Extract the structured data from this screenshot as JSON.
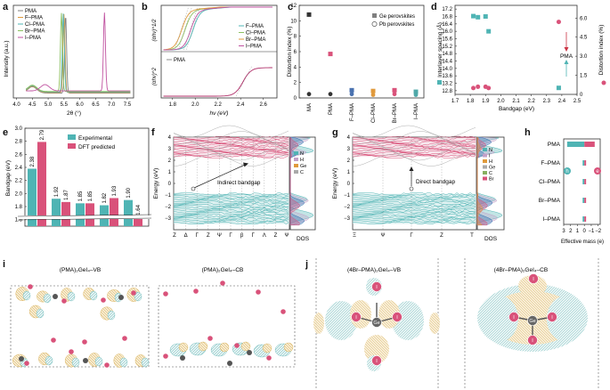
{
  "colors": {
    "teal": "#4fb4b4",
    "pink": "#d9527a",
    "gray": "#808080",
    "orange": "#e09a3c",
    "green": "#8cc060",
    "purple": "#c052a0",
    "dark": "#222222",
    "red": "#cc3344"
  },
  "panel_letters": [
    "a",
    "b",
    "c",
    "d",
    "e",
    "f",
    "g",
    "h",
    "i",
    "j"
  ],
  "panels": {
    "a": {
      "ylabel": "Intensity (a.u.)",
      "xlabel": "2θ (°)",
      "legend": [
        "PMA",
        "F–PMA",
        "Cl–PMA",
        "Br–PMA",
        "I–PMA"
      ],
      "xticks": [
        "4.0",
        "4.5",
        "5.0",
        "5.5",
        "6.0",
        "6.5",
        "7.0",
        "7.5"
      ]
    },
    "b": {
      "ylabel_top": "(αhν)^1/2",
      "ylabel_bottom": "(αhν)^2",
      "xlabel": "hν (eV)",
      "legend": [
        "F–PMA",
        "Cl–PMA",
        "Br–PMA",
        "I–PMA"
      ],
      "bottom_label": "PMA",
      "xticks": [
        "1.8",
        "2.0",
        "2.2",
        "2.4",
        "2.6"
      ]
    },
    "c": {
      "ylabel": "Distortion index (%)",
      "legend": [
        "Ge perovskites",
        "Pb perovskites"
      ],
      "categories": [
        "MA",
        "PMA",
        "F–PMA",
        "Cl–PMA",
        "Br–PMA",
        "I–PMA"
      ],
      "yticks": [
        "0",
        "2",
        "4",
        "6",
        "8",
        "10",
        "12"
      ]
    },
    "d": {
      "ylabel_left": "Interlayer spacing (Å)",
      "ylabel_right": "Distortion index (%)",
      "xlabel": "Bandgap (eV)",
      "annotation": "PMA",
      "yticks_left": [
        "12.8",
        "13.2",
        "13.6",
        "14.0",
        "14.4",
        "14.8",
        "15.2",
        "15.6",
        "16.0",
        "16.4",
        "16.8",
        "17.2"
      ],
      "yticks_right": [
        "0",
        "1.5",
        "3.0",
        "4.5",
        "6.0"
      ],
      "xticks": [
        "1.7",
        "1.8",
        "1.9",
        "2.0",
        "2.1",
        "2.2",
        "2.3",
        "2.4",
        "2.5"
      ]
    },
    "e": {
      "ylabel": "Bandgap (eV)",
      "legend": [
        "Experimental",
        "DFT predicted"
      ],
      "yticks": [
        "1.6",
        "1.8",
        "2.0",
        "2.2",
        "2.4",
        "2.6",
        "2.8",
        "3.0"
      ]
    },
    "f": {
      "ylabel": "Energy (eV)",
      "annotation": "Indirect bandgap",
      "kpoints": [
        "Z",
        "Δ",
        "Γ",
        "Z",
        "Ψ",
        "Γ",
        "β",
        "Γ",
        "Λ",
        "Z",
        "Ψ"
      ],
      "dos_label": "DOS",
      "dos_legend": [
        "N",
        "H",
        "Ge",
        "C"
      ],
      "yticks": [
        "4",
        "3",
        "2",
        "1",
        "0",
        "−1",
        "−2",
        "−3"
      ]
    },
    "g": {
      "ylabel": "Energy (eV)",
      "annotation": "Direct bandgap",
      "kpoints": [
        "Ξ",
        "Ψ",
        "Γ",
        "Z",
        "T"
      ],
      "dos_label": "DOS",
      "dos_legend": [
        "N",
        "I",
        "H",
        "Ge",
        "C",
        "Br"
      ],
      "yticks": [
        "4",
        "3",
        "2",
        "1",
        "0",
        "−1",
        "−2",
        "−3"
      ]
    },
    "h": {
      "categories": [
        "PMA",
        "F–PMA",
        "Cl–PMA",
        "Br–PMA",
        "I–PMA"
      ],
      "xlabel": "Effective mass (e)",
      "markers": [
        "h",
        "e"
      ],
      "xticks": [
        "3",
        "2",
        "1",
        "0",
        "−1",
        "−2"
      ]
    },
    "i": {
      "labels": [
        "(PMA)₂GeI₄–VB",
        "(PMA)₂GeI₄–CB"
      ]
    },
    "j": {
      "labels": [
        "(4Br–PMA)₂GeI₄–VB",
        "(4Br–PMA)₂GeI₄–CB"
      ],
      "atom_labels": [
        "I",
        "Ge"
      ]
    }
  },
  "chart_data": [
    {
      "panel": "e",
      "type": "bar",
      "title": "",
      "categories": [
        "PMA",
        "F–PMA",
        "Cl–PMA",
        "Br–PMA",
        "I–PMA"
      ],
      "series": [
        {
          "name": "Experimental",
          "values": [
            2.38,
            1.92,
            1.85,
            1.82,
            1.9
          ]
        },
        {
          "name": "DFT predicted",
          "values": [
            2.79,
            1.87,
            1.85,
            1.93,
            1.64
          ]
        }
      ],
      "value_labels": [
        [
          "2.38",
          "1.92",
          "1.85",
          "1.82",
          "1.90"
        ],
        [
          "2.79",
          "1.87",
          "1.85",
          "1.93",
          "1.64"
        ]
      ],
      "ylabel": "Bandgap (eV)",
      "ylim": [
        1.5,
        3.0
      ],
      "legend": "top-right"
    },
    {
      "panel": "c",
      "type": "scatter",
      "categories": [
        "MA",
        "PMA",
        "F–PMA",
        "Cl–PMA",
        "Br–PMA",
        "I–PMA"
      ],
      "series": [
        {
          "name": "Ge perovskites",
          "values": [
            10.8,
            5.7,
            1.0,
            0.9,
            1.0,
            0.8
          ]
        },
        {
          "name": "Pb perovskites",
          "values": [
            0.5,
            0.5,
            0.5,
            0.4,
            0.5,
            0.4
          ]
        }
      ],
      "ylabel": "Distortion index (%)",
      "ylim": [
        0,
        12
      ]
    },
    {
      "panel": "d",
      "type": "scatter",
      "series": [
        {
          "name": "Interlayer spacing",
          "x": [
            1.82,
            1.85,
            1.9,
            1.92,
            2.38
          ],
          "y": [
            16.82,
            16.76,
            16.8,
            16.0,
            12.95
          ]
        },
        {
          "name": "Distortion index",
          "x": [
            1.82,
            1.85,
            1.9,
            1.92,
            2.38
          ],
          "y": [
            0.5,
            0.6,
            0.6,
            0.5,
            5.7
          ]
        }
      ],
      "xlabel": "Bandgap (eV)",
      "xlim": [
        1.7,
        2.5
      ],
      "ylim_left": [
        12.6,
        17.4
      ],
      "ylim_right": [
        0,
        7
      ]
    },
    {
      "panel": "h",
      "type": "bar",
      "categories": [
        "PMA",
        "F–PMA",
        "Cl–PMA",
        "Br–PMA",
        "I–PMA"
      ],
      "series": [
        {
          "name": "h",
          "values": [
            2.5,
            0.25,
            0.25,
            0.25,
            0.25
          ]
        },
        {
          "name": "e",
          "values": [
            -1.5,
            -0.25,
            -0.25,
            -0.25,
            -0.25
          ]
        }
      ],
      "xlabel": "Effective mass (e)",
      "xlim": [
        3,
        -2.3
      ]
    }
  ]
}
